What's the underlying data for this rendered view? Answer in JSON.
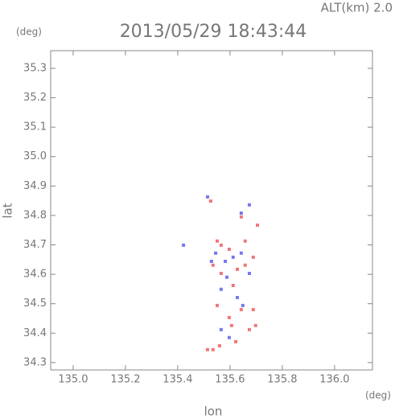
{
  "chart_data": {
    "type": "scatter",
    "title": "2013/05/29 18:43:44",
    "altitude_label": "ALT(km) 2.0",
    "y_unit": "(deg)",
    "x_unit": "(deg)",
    "xlabel": "lon",
    "ylabel": "lat",
    "xlim": [
      134.914,
      136.145
    ],
    "ylim": [
      34.275,
      35.36
    ],
    "xticks": [
      {
        "value": 135,
        "label": "135.0"
      },
      135.2,
      135.4,
      135.6,
      135.8,
      {
        "value": 136,
        "label": "136.0"
      }
    ],
    "yticks": [
      34.3,
      34.4,
      34.5,
      34.6,
      34.7,
      34.8,
      34.9,
      {
        "value": 35,
        "label": "35.0"
      },
      35.1,
      35.2,
      35.3
    ],
    "series": [
      {
        "color": "#f07878",
        "x": [
          135.643,
          135.705,
          135.526,
          135.551,
          135.535,
          135.566,
          135.597,
          135.628,
          135.658,
          135.689,
          135.612,
          135.551,
          135.597,
          135.643,
          135.689,
          135.674,
          135.698,
          135.606,
          135.622,
          135.56,
          135.535,
          135.514,
          135.566,
          135.658
        ],
        "y": [
          34.795,
          34.767,
          34.849,
          34.713,
          34.631,
          34.603,
          34.685,
          34.617,
          34.631,
          34.658,
          34.562,
          34.494,
          34.453,
          34.48,
          34.48,
          34.412,
          34.426,
          34.426,
          34.371,
          34.357,
          34.344,
          34.344,
          34.699,
          34.713
        ]
      },
      {
        "color": "#7878f0",
        "x": [
          135.643,
          135.674,
          135.514,
          135.422,
          135.545,
          135.582,
          135.612,
          135.643,
          135.674,
          135.566,
          135.628,
          135.649,
          135.566,
          135.597,
          135.529,
          135.588
        ],
        "y": [
          34.808,
          34.836,
          34.863,
          34.699,
          34.672,
          34.644,
          34.658,
          34.672,
          34.603,
          34.549,
          34.521,
          34.494,
          34.412,
          34.385,
          34.644,
          34.59
        ]
      }
    ]
  }
}
